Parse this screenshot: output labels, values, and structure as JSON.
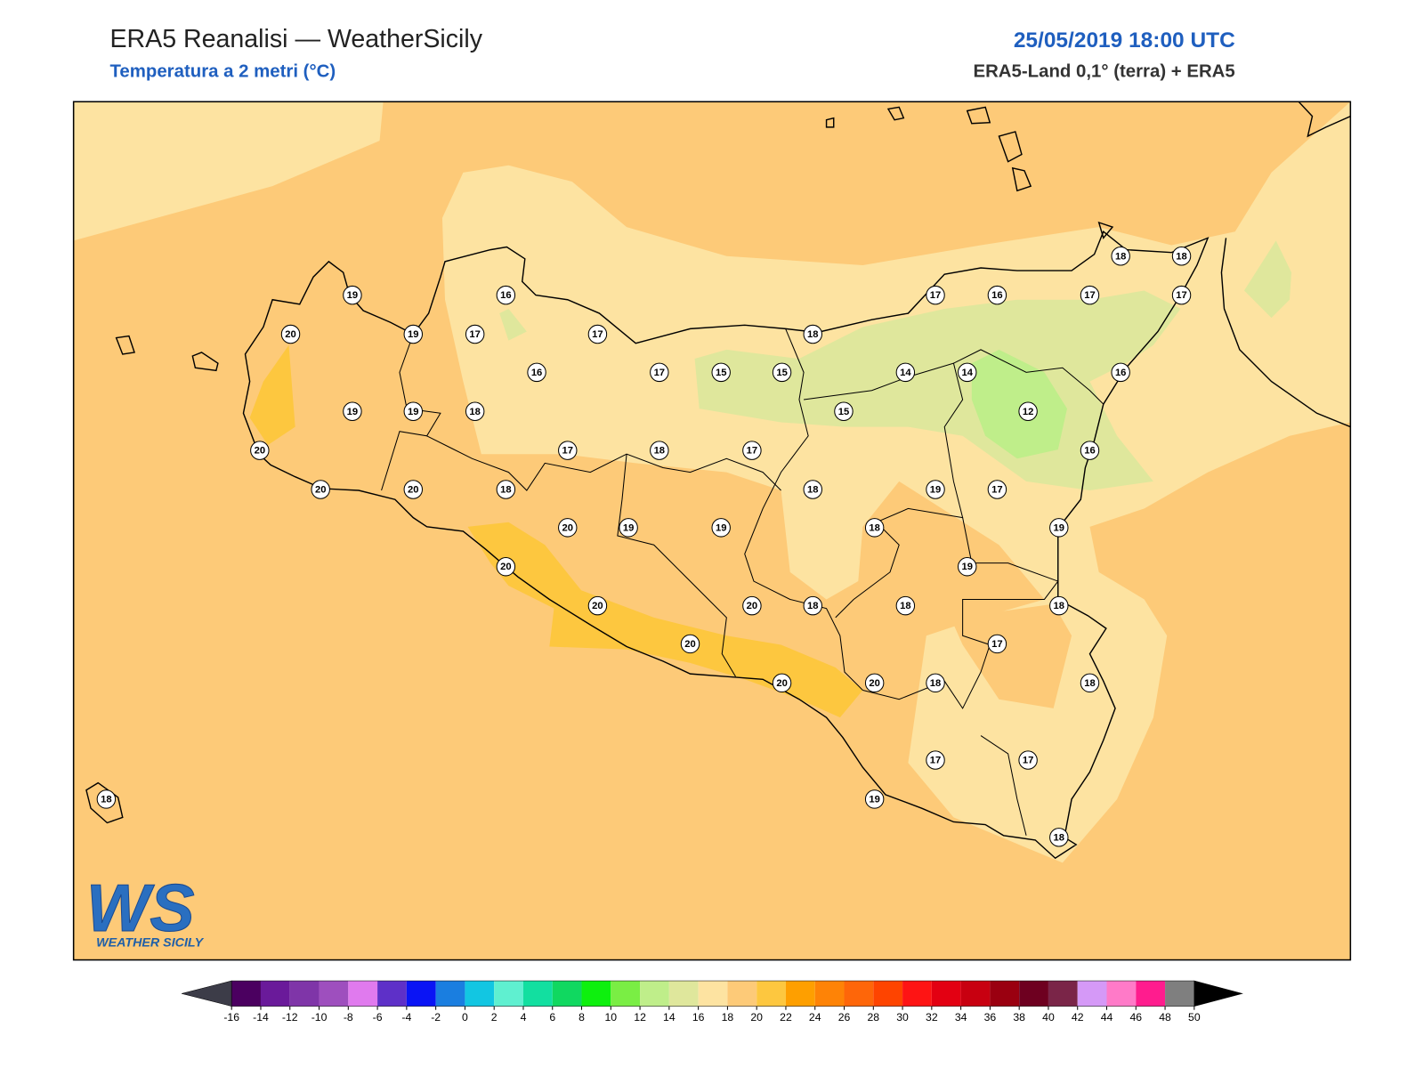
{
  "header": {
    "title": "ERA5 Reanalisi — WeatherSicily",
    "subtitle": "Temperatura a 2 metri (°C)",
    "datetime": "25/05/2019 18:00 UTC",
    "source": "ERA5-Land 0,1° (terra) + ERA5"
  },
  "stations": [
    19,
    16,
    20,
    19,
    17,
    17,
    18,
    17,
    16,
    17,
    18,
    18,
    17,
    16,
    17,
    15,
    15,
    14,
    14,
    16,
    19,
    19,
    18,
    15,
    12,
    20,
    17,
    18,
    17,
    16,
    20,
    20,
    18,
    18,
    19,
    17,
    20,
    19,
    19,
    18,
    19,
    20,
    19,
    20,
    20,
    18,
    18,
    18,
    17,
    20,
    20,
    20,
    18,
    18,
    17,
    17,
    19,
    18,
    18
  ],
  "colorbar": {
    "ticks": [
      -16,
      -14,
      -12,
      -10,
      -8,
      -6,
      -4,
      -2,
      0,
      2,
      4,
      6,
      8,
      10,
      12,
      14,
      16,
      18,
      20,
      22,
      24,
      26,
      28,
      30,
      32,
      34,
      36,
      38,
      40,
      42,
      44,
      46,
      48,
      50
    ],
    "colors": [
      "#4b0060",
      "#6a1a9a",
      "#7f35a8",
      "#9e4fbe",
      "#e07aee",
      "#5e30c8",
      "#0a14f5",
      "#1a7ee0",
      "#12c6e2",
      "#5ff0d0",
      "#12dfa0",
      "#10d860",
      "#0ef00e",
      "#7aee44",
      "#bfee8a",
      "#dfe79c",
      "#fde3a1",
      "#fdca78",
      "#fdc73f",
      "#fe9f00",
      "#fe8306",
      "#fe6609",
      "#fe4400",
      "#fe1414",
      "#e30012",
      "#c80010",
      "#9a0010",
      "#6e0020",
      "#7a2548",
      "#d599f7",
      "#ff7ac8",
      "#ff1c8e",
      "#7f7f7f",
      "#3c3c3c"
    ]
  },
  "logo": {
    "mark": "WS",
    "name": "WEATHER SICILY"
  }
}
